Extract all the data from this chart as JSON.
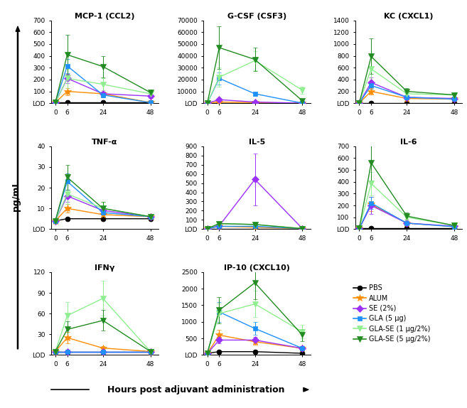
{
  "timepoints": [
    0,
    6,
    24,
    48
  ],
  "groups": [
    "PBS",
    "ALUM",
    "SE (2%)",
    "GLA (5 μg)",
    "GLA-SE (1 μg/2%)",
    "GLA-SE (5 μg/2%)"
  ],
  "colors": [
    "#000000",
    "#FF8C00",
    "#9B30FF",
    "#1E90FF",
    "#90EE90",
    "#228B22"
  ],
  "markers": [
    "o",
    "*",
    "D",
    "s",
    "v",
    "v"
  ],
  "markersizes": [
    5,
    7,
    5,
    5,
    6,
    6
  ],
  "panels": {
    "MCP-1 (CCL2)": {
      "ylim": [
        0,
        700
      ],
      "yticks": [
        0,
        100,
        200,
        300,
        400,
        500,
        600,
        700
      ],
      "yticklabels": [
        "LOD",
        "100",
        "200",
        "300",
        "400",
        "500",
        "600",
        "700"
      ],
      "data": {
        "PBS": {
          "y": [
            5,
            5,
            5,
            5
          ],
          "yerr": [
            0,
            0,
            0,
            0
          ]
        },
        "ALUM": {
          "y": [
            5,
            100,
            80,
            5
          ],
          "yerr": [
            2,
            30,
            20,
            2
          ]
        },
        "SE (2%)": {
          "y": [
            5,
            210,
            80,
            60
          ],
          "yerr": [
            2,
            40,
            20,
            15
          ]
        },
        "GLA (5 μg)": {
          "y": [
            5,
            315,
            70,
            5
          ],
          "yerr": [
            2,
            60,
            20,
            2
          ]
        },
        "GLA-SE (1 μg/2%)": {
          "y": [
            5,
            210,
            160,
            80
          ],
          "yerr": [
            2,
            80,
            50,
            20
          ]
        },
        "GLA-SE (5 μg/2%)": {
          "y": [
            5,
            410,
            310,
            90
          ],
          "yerr": [
            2,
            170,
            90,
            25
          ]
        }
      }
    },
    "G-CSF (CSF3)": {
      "ylim": [
        0,
        70000
      ],
      "yticks": [
        0,
        10000,
        20000,
        30000,
        40000,
        50000,
        60000,
        70000
      ],
      "yticklabels": [
        "LOD",
        "10000",
        "20000",
        "30000",
        "40000",
        "50000",
        "60000",
        "70000"
      ],
      "data": {
        "PBS": {
          "y": [
            50,
            50,
            50,
            50
          ],
          "yerr": [
            0,
            0,
            0,
            0
          ]
        },
        "ALUM": {
          "y": [
            50,
            1000,
            500,
            50
          ],
          "yerr": [
            20,
            300,
            150,
            20
          ]
        },
        "SE (2%)": {
          "y": [
            50,
            3000,
            1000,
            50
          ],
          "yerr": [
            20,
            500,
            200,
            20
          ]
        },
        "GLA (5 μg)": {
          "y": [
            50,
            21000,
            8000,
            50
          ],
          "yerr": [
            20,
            5000,
            2000,
            20
          ]
        },
        "GLA-SE (1 μg/2%)": {
          "y": [
            50,
            22000,
            36000,
            11000
          ],
          "yerr": [
            20,
            8000,
            8000,
            3000
          ]
        },
        "GLA-SE (5 μg/2%)": {
          "y": [
            50,
            47000,
            37000,
            2000
          ],
          "yerr": [
            20,
            18000,
            10000,
            1000
          ]
        }
      }
    },
    "KC (CXCL1)": {
      "ylim": [
        0,
        1400
      ],
      "yticks": [
        0,
        200,
        400,
        600,
        800,
        1000,
        1200,
        1400
      ],
      "yticklabels": [
        "LOD",
        "200",
        "400",
        "600",
        "800",
        "1000",
        "1200",
        "1400"
      ],
      "data": {
        "PBS": {
          "y": [
            5,
            5,
            5,
            5
          ],
          "yerr": [
            0,
            0,
            0,
            0
          ]
        },
        "ALUM": {
          "y": [
            5,
            200,
            80,
            70
          ],
          "yerr": [
            2,
            50,
            20,
            20
          ]
        },
        "SE (2%)": {
          "y": [
            5,
            350,
            100,
            80
          ],
          "yerr": [
            2,
            80,
            30,
            25
          ]
        },
        "GLA (5 μg)": {
          "y": [
            5,
            300,
            100,
            70
          ],
          "yerr": [
            2,
            60,
            30,
            20
          ]
        },
        "GLA-SE (1 μg/2%)": {
          "y": [
            5,
            580,
            160,
            140
          ],
          "yerr": [
            2,
            250,
            50,
            40
          ]
        },
        "GLA-SE (5 μg/2%)": {
          "y": [
            5,
            790,
            200,
            140
          ],
          "yerr": [
            2,
            300,
            60,
            45
          ]
        }
      }
    },
    "TNF-α": {
      "ylim": [
        0,
        40
      ],
      "yticks": [
        0,
        10,
        20,
        30,
        40
      ],
      "yticklabels": [
        "LOD",
        "10",
        "20",
        "30",
        "40"
      ],
      "data": {
        "PBS": {
          "y": [
            4,
            5,
            5,
            5
          ],
          "yerr": [
            0,
            0,
            0,
            0
          ]
        },
        "ALUM": {
          "y": [
            4,
            10,
            7,
            6
          ],
          "yerr": [
            1,
            2,
            2,
            1
          ]
        },
        "SE (2%)": {
          "y": [
            4,
            16,
            9,
            6
          ],
          "yerr": [
            1,
            3,
            2,
            1
          ]
        },
        "GLA (5 μg)": {
          "y": [
            4,
            23,
            8,
            6
          ],
          "yerr": [
            1,
            4,
            2,
            1
          ]
        },
        "GLA-SE (1 μg/2%)": {
          "y": [
            4,
            17,
            10,
            6
          ],
          "yerr": [
            1,
            5,
            3,
            1
          ]
        },
        "GLA-SE (5 μg/2%)": {
          "y": [
            4,
            25,
            10,
            6
          ],
          "yerr": [
            1,
            6,
            3,
            1
          ]
        }
      }
    },
    "IL-5": {
      "ylim": [
        0,
        900
      ],
      "yticks": [
        0,
        100,
        200,
        300,
        400,
        500,
        600,
        700,
        800,
        900
      ],
      "yticklabels": [
        "LOD",
        "100",
        "200",
        "300",
        "400",
        "500",
        "600",
        "700",
        "800",
        "900"
      ],
      "data": {
        "PBS": {
          "y": [
            5,
            5,
            5,
            5
          ],
          "yerr": [
            0,
            0,
            0,
            0
          ]
        },
        "ALUM": {
          "y": [
            5,
            30,
            20,
            5
          ],
          "yerr": [
            2,
            5,
            5,
            2
          ]
        },
        "SE (2%)": {
          "y": [
            5,
            35,
            540,
            5
          ],
          "yerr": [
            2,
            10,
            280,
            2
          ]
        },
        "GLA (5 μg)": {
          "y": [
            5,
            30,
            30,
            5
          ],
          "yerr": [
            2,
            5,
            5,
            2
          ]
        },
        "GLA-SE (1 μg/2%)": {
          "y": [
            5,
            60,
            50,
            5
          ],
          "yerr": [
            2,
            10,
            10,
            2
          ]
        },
        "GLA-SE (5 μg/2%)": {
          "y": [
            5,
            60,
            50,
            5
          ],
          "yerr": [
            2,
            15,
            10,
            2
          ]
        }
      }
    },
    "IL-6": {
      "ylim": [
        0,
        700
      ],
      "yticks": [
        0,
        100,
        200,
        300,
        400,
        500,
        600,
        700
      ],
      "yticklabels": [
        "LOD",
        "100",
        "200",
        "300",
        "400",
        "500",
        "600",
        "700"
      ],
      "data": {
        "PBS": {
          "y": [
            5,
            5,
            5,
            5
          ],
          "yerr": [
            0,
            0,
            0,
            0
          ]
        },
        "ALUM": {
          "y": [
            5,
            210,
            50,
            20
          ],
          "yerr": [
            2,
            60,
            15,
            5
          ]
        },
        "SE (2%)": {
          "y": [
            5,
            200,
            50,
            25
          ],
          "yerr": [
            2,
            70,
            15,
            7
          ]
        },
        "GLA (5 μg)": {
          "y": [
            5,
            220,
            50,
            20
          ],
          "yerr": [
            2,
            50,
            15,
            5
          ]
        },
        "GLA-SE (1 μg/2%)": {
          "y": [
            5,
            385,
            100,
            30
          ],
          "yerr": [
            2,
            100,
            30,
            8
          ]
        },
        "GLA-SE (5 μg/2%)": {
          "y": [
            5,
            560,
            110,
            30
          ],
          "yerr": [
            2,
            150,
            30,
            10
          ]
        }
      }
    },
    "IFNγ": {
      "ylim": [
        0,
        120
      ],
      "yticks": [
        0,
        30,
        60,
        90,
        120
      ],
      "yticklabels": [
        "LOD",
        "30",
        "60",
        "90",
        "120"
      ],
      "data": {
        "PBS": {
          "y": [
            5,
            5,
            5,
            5
          ],
          "yerr": [
            0,
            0,
            0,
            0
          ]
        },
        "ALUM": {
          "y": [
            5,
            25,
            10,
            5
          ],
          "yerr": [
            2,
            8,
            3,
            2
          ]
        },
        "SE (2%)": {
          "y": [
            5,
            5,
            5,
            5
          ],
          "yerr": [
            2,
            2,
            2,
            2
          ]
        },
        "GLA (5 μg)": {
          "y": [
            5,
            5,
            5,
            5
          ],
          "yerr": [
            2,
            2,
            2,
            2
          ]
        },
        "GLA-SE (1 μg/2%)": {
          "y": [
            5,
            57,
            82,
            5
          ],
          "yerr": [
            2,
            20,
            25,
            2
          ]
        },
        "GLA-SE (5 μg/2%)": {
          "y": [
            5,
            37,
            50,
            5
          ],
          "yerr": [
            2,
            12,
            15,
            2
          ]
        }
      }
    },
    "IP-10 (CXCL10)": {
      "ylim": [
        0,
        2500
      ],
      "yticks": [
        0,
        500,
        1000,
        1500,
        2000,
        2500
      ],
      "yticklabels": [
        "LOD",
        "500",
        "1000",
        "1500",
        "2000",
        "2500"
      ],
      "data": {
        "PBS": {
          "y": [
            50,
            100,
            100,
            50
          ],
          "yerr": [
            10,
            20,
            20,
            10
          ]
        },
        "ALUM": {
          "y": [
            50,
            600,
            400,
            200
          ],
          "yerr": [
            20,
            150,
            100,
            60
          ]
        },
        "SE (2%)": {
          "y": [
            50,
            450,
            450,
            200
          ],
          "yerr": [
            20,
            100,
            100,
            60
          ]
        },
        "GLA (5 μg)": {
          "y": [
            50,
            1300,
            800,
            200
          ],
          "yerr": [
            20,
            300,
            200,
            60
          ]
        },
        "GLA-SE (1 μg/2%)": {
          "y": [
            50,
            1250,
            1540,
            700
          ],
          "yerr": [
            20,
            300,
            400,
            200
          ]
        },
        "GLA-SE (5 μg/2%)": {
          "y": [
            50,
            1350,
            2180,
            600
          ],
          "yerr": [
            20,
            400,
            500,
            180
          ]
        }
      }
    }
  },
  "panel_order": [
    "MCP-1 (CCL2)",
    "G-CSF (CSF3)",
    "KC (CXCL1)",
    "TNF-α",
    "IL-5",
    "IL-6",
    "IFNγ",
    "IP-10 (CXCL10)"
  ],
  "xlabel": "Hours post adjuvant administration",
  "ylabel": "pg/mL",
  "legend_labels": [
    "PBS",
    "ALUM",
    "SE (2%)",
    "GLA (5 μg)",
    "GLA-SE (1 μg/2%)",
    "GLA-SE (5 μg/2%)"
  ],
  "legend_colors": [
    "#000000",
    "#FF8C00",
    "#9B30FF",
    "#1E90FF",
    "#90EE90",
    "#228B22"
  ],
  "legend_markers": [
    "o",
    "*",
    "D",
    "s",
    "v",
    "v"
  ],
  "legend_markersizes": [
    5,
    7,
    5,
    5,
    6,
    6
  ]
}
